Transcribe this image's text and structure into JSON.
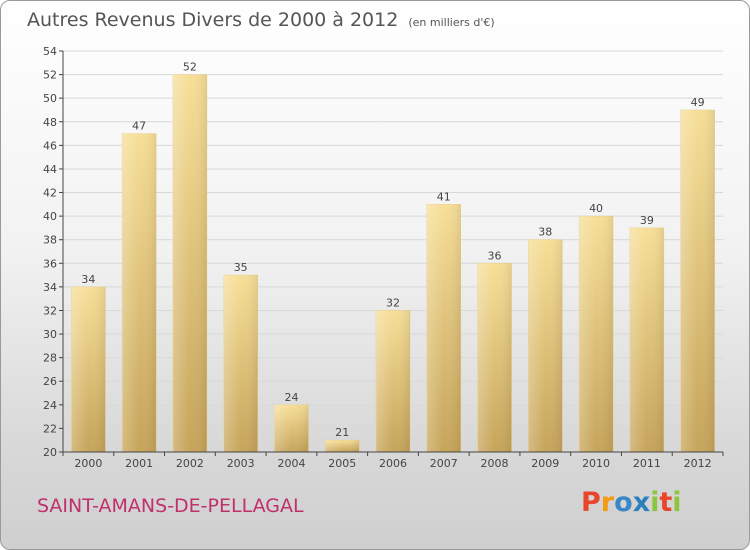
{
  "chart_data": {
    "type": "bar",
    "title": "Autres Revenus Divers de 2000 à 2012",
    "subtitle": "(en milliers d'€)",
    "categories": [
      "2000",
      "2001",
      "2002",
      "2003",
      "2004",
      "2005",
      "2006",
      "2007",
      "2008",
      "2009",
      "2010",
      "2011",
      "2012"
    ],
    "values": [
      34,
      47,
      52,
      35,
      24,
      21,
      32,
      41,
      36,
      38,
      40,
      39,
      49
    ],
    "ylim": [
      20,
      54
    ],
    "yticks": [
      20,
      22,
      24,
      26,
      28,
      30,
      32,
      34,
      36,
      38,
      40,
      42,
      44,
      46,
      48,
      50,
      52,
      54
    ],
    "grid": true,
    "colors": {
      "bar_light": "#f5dc94",
      "bar_dark": "#c8a85c",
      "grid": "#d8d8d8",
      "axis": "#444444"
    }
  },
  "footer": {
    "place_name": "SAINT-AMANS-DE-PELLAGAL"
  },
  "logo": {
    "letters": [
      "P",
      "r",
      "o",
      "x",
      "i",
      "t",
      "i"
    ],
    "colors": [
      "#e8452b",
      "#f39c12",
      "#3a87c8",
      "#2c7fbf",
      "#8cc63f",
      "#e8452b",
      "#8cc63f"
    ]
  }
}
